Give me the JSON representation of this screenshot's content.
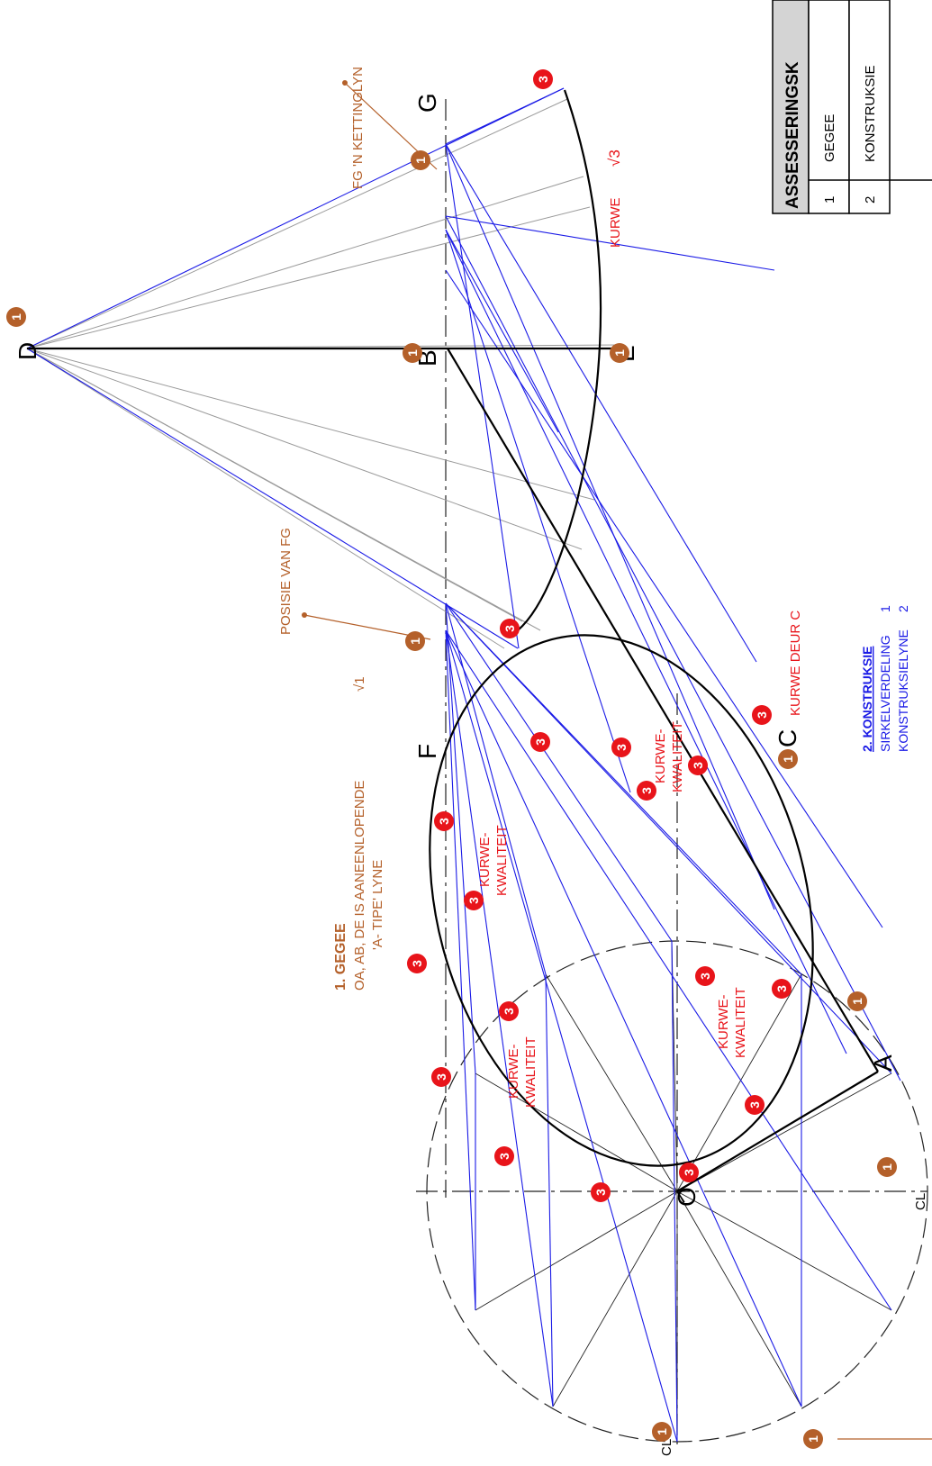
{
  "points": {
    "D": "D",
    "G": "G",
    "B": "B",
    "E": "E",
    "F": "F",
    "C": "C",
    "A": "A",
    "O": "O",
    "CL_bottom": "CL",
    "CL_left": "CL"
  },
  "annotations": {
    "fg_chain": "FG 'N KETTINGLYN",
    "curve": "KURWE",
    "curve_mark": "√3",
    "position_fg": "POSISIE VAN FG",
    "given_heading": "1.  GEGEE",
    "given_line1": "OA, AB, DE  IS AANEENLOPENDE",
    "given_line2": "'A- TIPE' LYNE",
    "given_mark": "√1",
    "curve_through_c": "KURWE DEUR C",
    "curve_quality_a": "KURWE-",
    "curve_quality_b": "KWALITEIT",
    "construction_heading": "2. KONSTRUKSIE",
    "circle_division": "SIRKELVERDELING",
    "circle_division_mark": "1",
    "construction_cut": "KONSTRUKSIELYNE",
    "construction_cut_mark": "2"
  },
  "badges": {
    "one": "1",
    "three": "3"
  },
  "assessment_table": {
    "title": "ASSESSERINGSK",
    "rows": [
      {
        "num": "1",
        "label": "GEGEE"
      },
      {
        "num": "2",
        "label": "KONSTRUKSIE"
      }
    ]
  },
  "colors": {
    "construction_blue": "#1a1ae6",
    "annotation_red": "#e8141a",
    "annotation_brown": "#b4602a",
    "projector_grey": "#9a9a9a"
  }
}
